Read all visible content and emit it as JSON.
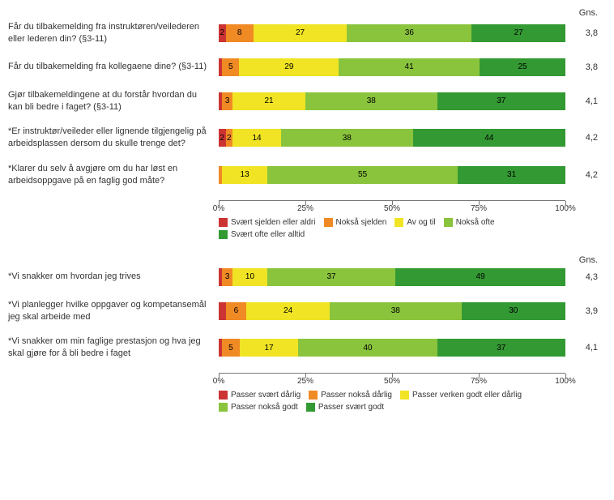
{
  "colors": {
    "c1": "#cc3333",
    "c2": "#f08a24",
    "c3": "#f0e424",
    "c4": "#8ac43d",
    "c5": "#339933"
  },
  "charts": [
    {
      "gns_header": "Gns.",
      "axis_ticks": [
        "0%",
        "25%",
        "50%",
        "75%",
        "100%"
      ],
      "legend": [
        {
          "color": "c1",
          "label": "Svært sjelden eller aldri"
        },
        {
          "color": "c2",
          "label": "Nokså sjelden"
        },
        {
          "color": "c3",
          "label": "Av og til"
        },
        {
          "color": "c4",
          "label": "Nokså ofte"
        },
        {
          "color": "c5",
          "label": "Svært ofte eller alltid"
        }
      ],
      "rows": [
        {
          "label": "Får du tilbakemelding fra instruktøren/veilederen eller lederen din? (§3-11)",
          "gns": "3,8",
          "segments": [
            {
              "color": "c1",
              "value": 2,
              "text": "2"
            },
            {
              "color": "c2",
              "value": 8,
              "text": "8"
            },
            {
              "color": "c3",
              "value": 27,
              "text": "27"
            },
            {
              "color": "c4",
              "value": 36,
              "text": "36"
            },
            {
              "color": "c5",
              "value": 27,
              "text": "27"
            }
          ]
        },
        {
          "label": "Får du tilbakemelding fra kollegaene dine? (§3-11)",
          "gns": "3,8",
          "segments": [
            {
              "color": "c1",
              "value": 1,
              "text": ""
            },
            {
              "color": "c2",
              "value": 5,
              "text": "5"
            },
            {
              "color": "c3",
              "value": 29,
              "text": "29"
            },
            {
              "color": "c4",
              "value": 41,
              "text": "41"
            },
            {
              "color": "c5",
              "value": 25,
              "text": "25"
            }
          ]
        },
        {
          "label": "Gjør tilbakemeldingene at du forstår hvordan du kan bli bedre i faget? (§3-11)",
          "gns": "4,1",
          "segments": [
            {
              "color": "c1",
              "value": 1,
              "text": ""
            },
            {
              "color": "c2",
              "value": 3,
              "text": "3"
            },
            {
              "color": "c3",
              "value": 21,
              "text": "21"
            },
            {
              "color": "c4",
              "value": 38,
              "text": "38"
            },
            {
              "color": "c5",
              "value": 37,
              "text": "37"
            }
          ]
        },
        {
          "label": "*Er instruktør/veileder eller lignende tilgjengelig på arbeidsplassen dersom du skulle trenge det?",
          "gns": "4,2",
          "segments": [
            {
              "color": "c1",
              "value": 2,
              "text": "2"
            },
            {
              "color": "c2",
              "value": 2,
              "text": "2"
            },
            {
              "color": "c3",
              "value": 14,
              "text": "14"
            },
            {
              "color": "c4",
              "value": 38,
              "text": "38"
            },
            {
              "color": "c5",
              "value": 44,
              "text": "44"
            }
          ]
        },
        {
          "label": "*Klarer du selv å avgjøre om du har løst en arbeidsoppgave på en faglig god måte?",
          "gns": "4,2",
          "segments": [
            {
              "color": "c1",
              "value": 0,
              "text": ""
            },
            {
              "color": "c2",
              "value": 1,
              "text": ""
            },
            {
              "color": "c3",
              "value": 13,
              "text": "13"
            },
            {
              "color": "c4",
              "value": 55,
              "text": "55"
            },
            {
              "color": "c5",
              "value": 31,
              "text": "31"
            }
          ]
        }
      ]
    },
    {
      "gns_header": "Gns.",
      "axis_ticks": [
        "0%",
        "25%",
        "50%",
        "75%",
        "100%"
      ],
      "legend": [
        {
          "color": "c1",
          "label": "Passer svært dårlig"
        },
        {
          "color": "c2",
          "label": "Passer nokså dårlig"
        },
        {
          "color": "c3",
          "label": "Passer verken godt eller dårlig"
        },
        {
          "color": "c4",
          "label": "Passer nokså godt"
        },
        {
          "color": "c5",
          "label": "Passer svært godt"
        }
      ],
      "rows": [
        {
          "label": "*Vi snakker om hvordan jeg trives",
          "gns": "4,3",
          "segments": [
            {
              "color": "c1",
              "value": 1,
              "text": ""
            },
            {
              "color": "c2",
              "value": 3,
              "text": "3"
            },
            {
              "color": "c3",
              "value": 10,
              "text": "10"
            },
            {
              "color": "c4",
              "value": 37,
              "text": "37"
            },
            {
              "color": "c5",
              "value": 49,
              "text": "49"
            }
          ]
        },
        {
          "label": "*Vi planlegger hvilke oppgaver og kompetansemål jeg skal arbeide med",
          "gns": "3,9",
          "segments": [
            {
              "color": "c1",
              "value": 2,
              "text": ""
            },
            {
              "color": "c2",
              "value": 6,
              "text": "6"
            },
            {
              "color": "c3",
              "value": 24,
              "text": "24"
            },
            {
              "color": "c4",
              "value": 38,
              "text": "38"
            },
            {
              "color": "c5",
              "value": 30,
              "text": "30"
            }
          ]
        },
        {
          "label": "*Vi snakker om min faglige prestasjon og hva jeg skal gjøre for å bli bedre i faget",
          "gns": "4,1",
          "segments": [
            {
              "color": "c1",
              "value": 1,
              "text": ""
            },
            {
              "color": "c2",
              "value": 5,
              "text": "5"
            },
            {
              "color": "c3",
              "value": 17,
              "text": "17"
            },
            {
              "color": "c4",
              "value": 40,
              "text": "40"
            },
            {
              "color": "c5",
              "value": 37,
              "text": "37"
            }
          ]
        }
      ]
    }
  ]
}
